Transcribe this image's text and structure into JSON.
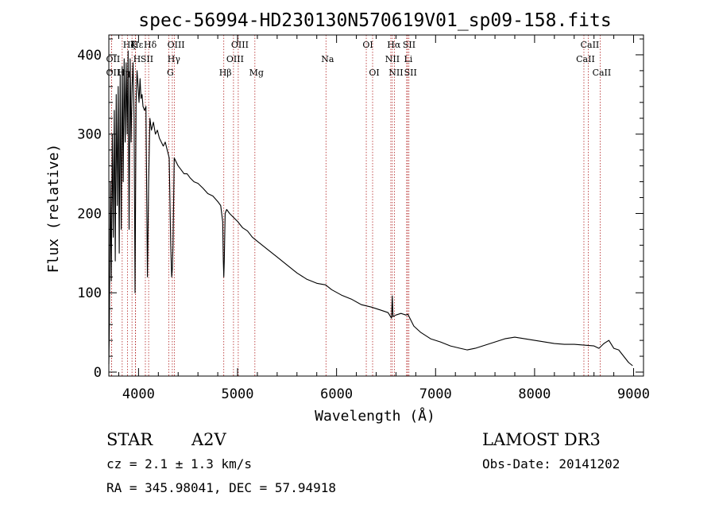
{
  "chart_data": {
    "type": "line",
    "title": "spec-56994-HD230130N570619V01_sp09-158.fits",
    "xlabel": "Wavelength (Å)",
    "ylabel": "Flux (relative)",
    "xlim": [
      3700,
      9100
    ],
    "ylim": [
      -5,
      425
    ],
    "xticks": [
      4000,
      5000,
      6000,
      7000,
      8000,
      9000
    ],
    "yticks": [
      0,
      100,
      200,
      300,
      400
    ],
    "series": [
      {
        "name": "spectrum",
        "x": [
          3700,
          3705,
          3715,
          3725,
          3735,
          3745,
          3755,
          3765,
          3775,
          3785,
          3795,
          3805,
          3815,
          3825,
          3835,
          3845,
          3855,
          3865,
          3875,
          3885,
          3895,
          3905,
          3915,
          3925,
          3935,
          3945,
          3955,
          3965,
          3975,
          3985,
          3995,
          4005,
          4015,
          4025,
          4035,
          4045,
          4060,
          4075,
          4090,
          4102,
          4115,
          4130,
          4150,
          4170,
          4190,
          4210,
          4230,
          4250,
          4270,
          4290,
          4310,
          4325,
          4335,
          4341,
          4348,
          4360,
          4380,
          4400,
          4430,
          4460,
          4490,
          4520,
          4560,
          4600,
          4650,
          4700,
          4750,
          4800,
          4830,
          4850,
          4856,
          4861,
          4866,
          4875,
          4890,
          4920,
          4960,
          5000,
          5050,
          5100,
          5150,
          5200,
          5300,
          5400,
          5500,
          5600,
          5700,
          5800,
          5890,
          5950,
          6050,
          6150,
          6250,
          6350,
          6450,
          6520,
          6555,
          6563,
          6570,
          6600,
          6650,
          6700,
          6720,
          6780,
          6850,
          6950,
          7050,
          7150,
          7250,
          7320,
          7400,
          7500,
          7600,
          7700,
          7800,
          7900,
          8000,
          8100,
          8200,
          8300,
          8400,
          8500,
          8600,
          8650,
          8700,
          8750,
          8800,
          8850,
          8900,
          8950,
          8990
        ],
        "y": [
          10,
          55,
          240,
          115,
          300,
          170,
          330,
          140,
          350,
          210,
          360,
          150,
          375,
          180,
          385,
          240,
          395,
          290,
          390,
          300,
          405,
          180,
          395,
          290,
          360,
          390,
          320,
          100,
          340,
          380,
          360,
          340,
          370,
          345,
          350,
          335,
          330,
          335,
          120,
          240,
          320,
          305,
          315,
          300,
          305,
          295,
          290,
          285,
          290,
          280,
          270,
          160,
          120,
          130,
          160,
          270,
          265,
          260,
          255,
          250,
          250,
          245,
          240,
          238,
          232,
          225,
          222,
          215,
          210,
          190,
          140,
          120,
          140,
          200,
          205,
          200,
          195,
          190,
          182,
          178,
          170,
          165,
          155,
          145,
          135,
          125,
          117,
          112,
          110,
          104,
          97,
          92,
          85,
          82,
          78,
          75,
          68,
          96,
          70,
          72,
          74,
          72,
          73,
          58,
          50,
          42,
          38,
          33,
          30,
          28,
          30,
          34,
          38,
          42,
          44,
          42,
          40,
          38,
          36,
          35,
          35,
          34,
          33,
          30,
          36,
          40,
          30,
          28,
          20,
          12,
          8
        ],
        "color": "#000000"
      }
    ],
    "lines": [
      {
        "label": "Hε",
        "x": 3970,
        "row": 0
      },
      {
        "label": "OII",
        "x": 3727,
        "row": 1
      },
      {
        "label": "OII",
        "x": 3727,
        "row": 2
      },
      {
        "label": "Hζ",
        "x": 3889,
        "row": 0
      },
      {
        "label": "K",
        "x": 3934,
        "row": 0
      },
      {
        "label": "H",
        "x": 3968,
        "row": 1
      },
      {
        "label": "Hη",
        "x": 3835,
        "row": 2
      },
      {
        "label": "SII",
        "x": 4069,
        "row": 1
      },
      {
        "label": "Hδ",
        "x": 4102,
        "row": 0
      },
      {
        "label": "OIII",
        "x": 4363,
        "row": 0
      },
      {
        "label": "Hγ",
        "x": 4341,
        "row": 1
      },
      {
        "label": "G",
        "x": 4305,
        "row": 2
      },
      {
        "label": "OIII",
        "x": 5007,
        "row": 0
      },
      {
        "label": "OIII",
        "x": 4959,
        "row": 1
      },
      {
        "label": "Hβ",
        "x": 4861,
        "row": 2
      },
      {
        "label": "Mg",
        "x": 5175,
        "row": 2
      },
      {
        "label": "Na",
        "x": 5893,
        "row": 1
      },
      {
        "label": "OI",
        "x": 6300,
        "row": 0
      },
      {
        "label": "OI",
        "x": 6364,
        "row": 2
      },
      {
        "label": "Hα",
        "x": 6563,
        "row": 0
      },
      {
        "label": "NII",
        "x": 6548,
        "row": 1
      },
      {
        "label": "NII",
        "x": 6584,
        "row": 2
      },
      {
        "label": "SII",
        "x": 6717,
        "row": 0
      },
      {
        "label": "Li",
        "x": 6708,
        "row": 1
      },
      {
        "label": "SII",
        "x": 6731,
        "row": 2
      },
      {
        "label": "CaII",
        "x": 8542,
        "row": 0
      },
      {
        "label": "CaII",
        "x": 8498,
        "row": 1
      },
      {
        "label": "CaII",
        "x": 8662,
        "row": 2
      }
    ],
    "line_color": "#b22222"
  },
  "info": {
    "object_class": "STAR",
    "subclass": "A2V",
    "survey": "LAMOST DR3",
    "cz": "cz = 2.1 ± 1.3 km/s",
    "obs_date": "Obs-Date: 20141202",
    "coords": "RA = 345.98041, DEC =  57.94918"
  }
}
